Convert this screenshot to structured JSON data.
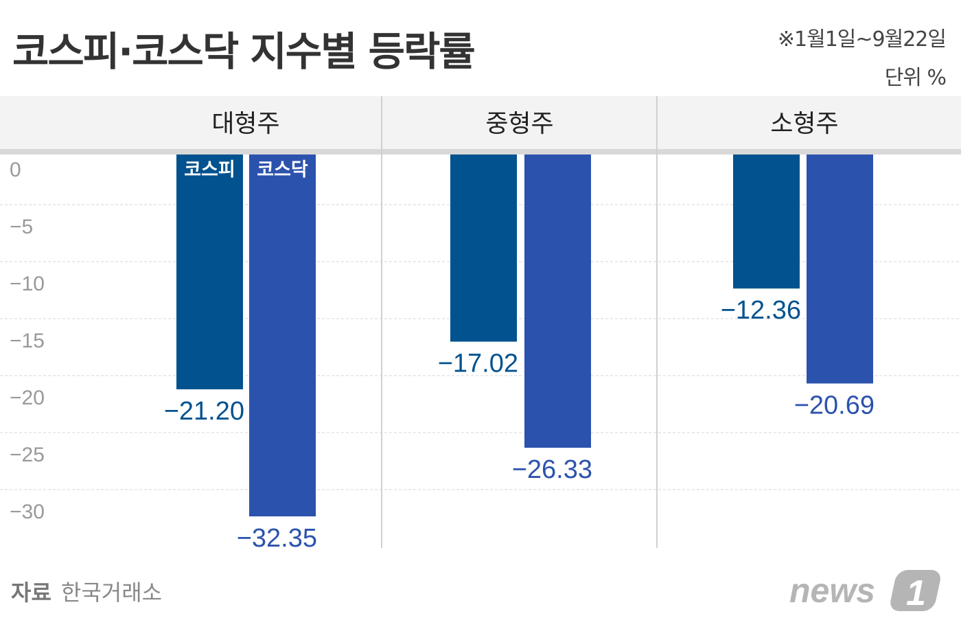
{
  "title": "코스피·코스닥 지수별 등락률",
  "period": "※1월1일~9월22일",
  "unit": "단위 %",
  "source_label": "자료",
  "source": "한국거래소",
  "logo": "news1",
  "colors": {
    "코스피": "#02528f",
    "코스닥": "#2b52ad",
    "header_bg": "#f3f3f3",
    "tick": "#999999"
  },
  "chart_data": {
    "type": "bar",
    "categories": [
      "대형주",
      "중형주",
      "소형주"
    ],
    "series": [
      {
        "name": "코스피",
        "values": [
          -21.2,
          -17.02,
          -12.36
        ]
      },
      {
        "name": "코스닥",
        "values": [
          -32.35,
          -26.33,
          -20.69
        ]
      }
    ],
    "value_labels": [
      [
        "-21.20",
        "-17.02",
        "-12.36"
      ],
      [
        "-32.35",
        "-26.33",
        "-20.69"
      ]
    ],
    "yticks": [
      0,
      -5,
      -10,
      -15,
      -20,
      -25,
      -30
    ],
    "ytick_labels": [
      "0",
      "-5",
      "-10",
      "-15",
      "-20",
      "-25",
      "-30"
    ],
    "ylim": [
      -34,
      0
    ],
    "grid": true,
    "legend": "inside-bars-top"
  }
}
